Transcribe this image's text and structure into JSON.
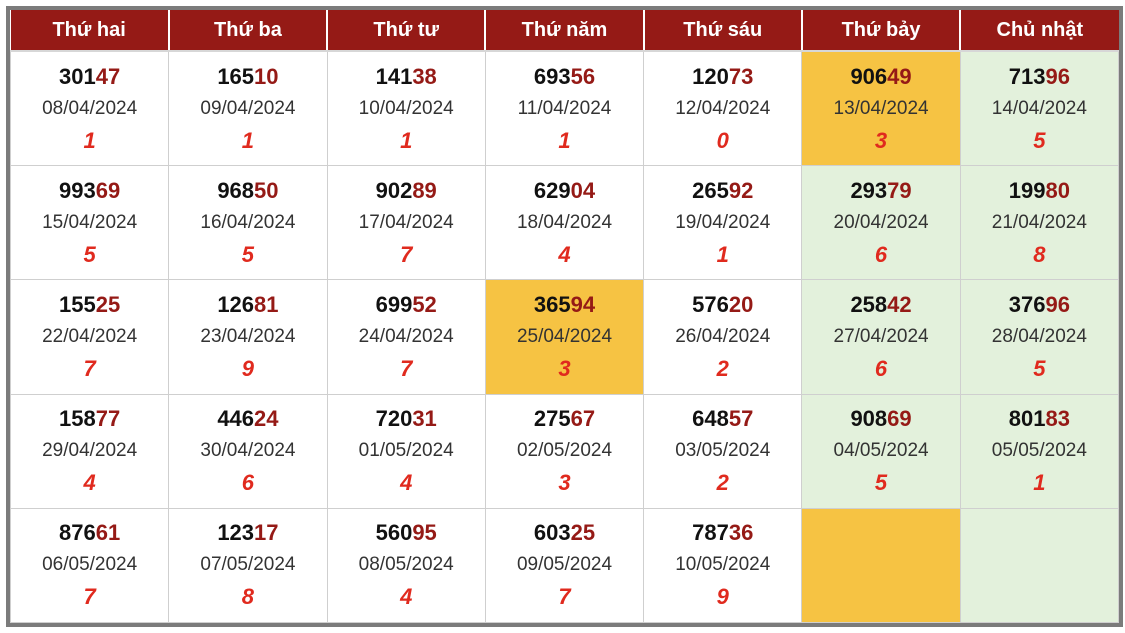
{
  "header": [
    "Thứ hai",
    "Thứ ba",
    "Thứ tư",
    "Thứ năm",
    "Thứ sáu",
    "Thứ bảy",
    "Chủ nhật"
  ],
  "colors": {
    "header_bg": "#951a16",
    "highlight": "#f6c343",
    "weekend_bg": "#e3f1dc",
    "digit": "#e02a1e"
  },
  "rows": [
    [
      {
        "head": "301",
        "tail": "47",
        "date": "08/04/2024",
        "digit": "1"
      },
      {
        "head": "165",
        "tail": "10",
        "date": "09/04/2024",
        "digit": "1"
      },
      {
        "head": "141",
        "tail": "38",
        "date": "10/04/2024",
        "digit": "1"
      },
      {
        "head": "693",
        "tail": "56",
        "date": "11/04/2024",
        "digit": "1"
      },
      {
        "head": "120",
        "tail": "73",
        "date": "12/04/2024",
        "digit": "0"
      },
      {
        "head": "906",
        "tail": "49",
        "date": "13/04/2024",
        "digit": "3",
        "highlight": true
      },
      {
        "head": "713",
        "tail": "96",
        "date": "14/04/2024",
        "digit": "5"
      }
    ],
    [
      {
        "head": "993",
        "tail": "69",
        "date": "15/04/2024",
        "digit": "5"
      },
      {
        "head": "968",
        "tail": "50",
        "date": "16/04/2024",
        "digit": "5"
      },
      {
        "head": "902",
        "tail": "89",
        "date": "17/04/2024",
        "digit": "7"
      },
      {
        "head": "629",
        "tail": "04",
        "date": "18/04/2024",
        "digit": "4"
      },
      {
        "head": "265",
        "tail": "92",
        "date": "19/04/2024",
        "digit": "1"
      },
      {
        "head": "293",
        "tail": "79",
        "date": "20/04/2024",
        "digit": "6"
      },
      {
        "head": "199",
        "tail": "80",
        "date": "21/04/2024",
        "digit": "8"
      }
    ],
    [
      {
        "head": "155",
        "tail": "25",
        "date": "22/04/2024",
        "digit": "7"
      },
      {
        "head": "126",
        "tail": "81",
        "date": "23/04/2024",
        "digit": "9"
      },
      {
        "head": "699",
        "tail": "52",
        "date": "24/04/2024",
        "digit": "7"
      },
      {
        "head": "365",
        "tail": "94",
        "date": "25/04/2024",
        "digit": "3",
        "highlight": true
      },
      {
        "head": "576",
        "tail": "20",
        "date": "26/04/2024",
        "digit": "2"
      },
      {
        "head": "258",
        "tail": "42",
        "date": "27/04/2024",
        "digit": "6"
      },
      {
        "head": "376",
        "tail": "96",
        "date": "28/04/2024",
        "digit": "5"
      }
    ],
    [
      {
        "head": "158",
        "tail": "77",
        "date": "29/04/2024",
        "digit": "4"
      },
      {
        "head": "446",
        "tail": "24",
        "date": "30/04/2024",
        "digit": "6"
      },
      {
        "head": "720",
        "tail": "31",
        "date": "01/05/2024",
        "digit": "4"
      },
      {
        "head": "275",
        "tail": "67",
        "date": "02/05/2024",
        "digit": "3"
      },
      {
        "head": "648",
        "tail": "57",
        "date": "03/05/2024",
        "digit": "2"
      },
      {
        "head": "908",
        "tail": "69",
        "date": "04/05/2024",
        "digit": "5"
      },
      {
        "head": "801",
        "tail": "83",
        "date": "05/05/2024",
        "digit": "1"
      }
    ],
    [
      {
        "head": "876",
        "tail": "61",
        "date": "06/05/2024",
        "digit": "7"
      },
      {
        "head": "123",
        "tail": "17",
        "date": "07/05/2024",
        "digit": "8"
      },
      {
        "head": "560",
        "tail": "95",
        "date": "08/05/2024",
        "digit": "4"
      },
      {
        "head": "603",
        "tail": "25",
        "date": "09/05/2024",
        "digit": "7"
      },
      {
        "head": "787",
        "tail": "36",
        "date": "10/05/2024",
        "digit": "9"
      },
      {
        "highlight": true,
        "empty": true
      },
      {
        "empty": true
      }
    ]
  ]
}
